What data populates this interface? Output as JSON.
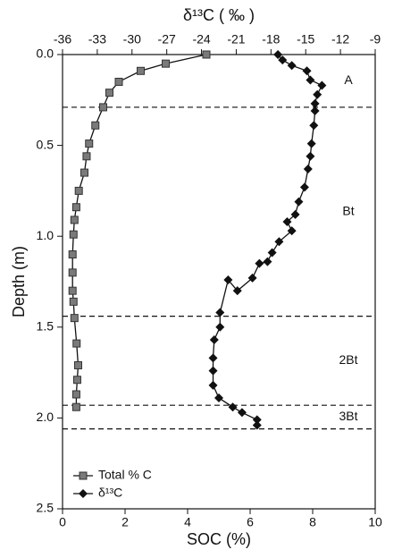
{
  "chart_data": {
    "type": "line",
    "title": "δ¹³C ( ‰ )",
    "xlabel": "SOC (%)",
    "ylabel": "Depth (m)",
    "xlim": [
      0,
      10
    ],
    "xticks": [
      0,
      2,
      4,
      6,
      8,
      10
    ],
    "x2lim": [
      -36,
      -9
    ],
    "x2ticks": [
      -36,
      -33,
      -30,
      -27,
      -24,
      -21,
      -18,
      -15,
      -12,
      -9
    ],
    "ylim": [
      0,
      2.5
    ],
    "y_inverted": true,
    "yticks": [
      {
        "value": 0,
        "label": "0.0"
      },
      0.5,
      {
        "value": 1,
        "label": "1.0"
      },
      1.5,
      {
        "value": 2,
        "label": "2.0"
      },
      2.5
    ],
    "series": [
      {
        "name": "Total % C",
        "color": "#7a7a7a",
        "marker": "square",
        "axis": "x",
        "depth": [
          0,
          0.05,
          0.09,
          0.15,
          0.21,
          0.29,
          0.39,
          0.49,
          0.56,
          0.65,
          0.75,
          0.84,
          0.91,
          0.99,
          1.1,
          1.2,
          1.3,
          1.36,
          1.45,
          1.59,
          1.71,
          1.79,
          1.87,
          1.94
        ],
        "values": [
          4.6,
          3.3,
          2.5,
          1.8,
          1.5,
          1.3,
          1.05,
          0.85,
          0.77,
          0.7,
          0.52,
          0.44,
          0.38,
          0.35,
          0.32,
          0.32,
          0.32,
          0.35,
          0.38,
          0.45,
          0.5,
          0.47,
          0.44,
          0.44
        ]
      },
      {
        "name": "δ¹³C",
        "color": "#111111",
        "marker": "diamond",
        "axis": "x2",
        "depth": [
          0,
          0.03,
          0.06,
          0.09,
          0.14,
          0.17,
          0.22,
          0.27,
          0.31,
          0.39,
          0.49,
          0.56,
          0.63,
          0.73,
          0.81,
          0.88,
          0.92,
          0.97,
          1.03,
          1.09,
          1.14,
          1.15,
          1.23,
          1.3,
          1.24,
          1.42,
          1.5,
          1.57,
          1.67,
          1.74,
          1.82,
          1.89,
          1.94,
          1.97,
          2.01,
          2.04
        ],
        "values": [
          -17.4,
          -17.0,
          -16.2,
          -14.9,
          -14.6,
          -13.6,
          -14.0,
          -14.2,
          -14.2,
          -14.3,
          -14.5,
          -14.6,
          -14.8,
          -15.1,
          -15.6,
          -15.9,
          -16.6,
          -16.2,
          -17.3,
          -17.9,
          -18.3,
          -19.0,
          -19.6,
          -20.9,
          -21.7,
          -22.4,
          -22.4,
          -22.9,
          -23.0,
          -23.0,
          -23.0,
          -22.5,
          -21.3,
          -20.5,
          -19.2,
          -19.2
        ]
      }
    ],
    "horizons": [
      0.29,
      1.44,
      1.93,
      2.06
    ],
    "horizon_names": [
      "A",
      "Bt",
      "2Bt",
      "3Bt"
    ]
  }
}
